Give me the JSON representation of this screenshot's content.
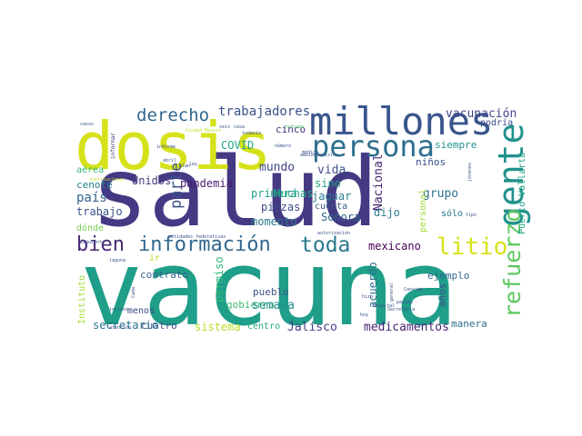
{
  "words": [
    {
      "text": "salud",
      "color": "#443983",
      "vertical": false
    },
    {
      "text": "vacuna",
      "color": "#1f9e89",
      "vertical": false
    },
    {
      "text": "dosis",
      "color": "#d5e21a",
      "vertical": false
    },
    {
      "text": "millones",
      "color": "#39568c",
      "vertical": false
    },
    {
      "text": "persona",
      "color": "#2d708e",
      "vertical": false
    },
    {
      "text": "información",
      "color": "#31688e",
      "vertical": false
    },
    {
      "text": "toda",
      "color": "#2a788e",
      "vertical": false
    },
    {
      "text": "bien",
      "color": "#482878",
      "vertical": false
    },
    {
      "text": "litio",
      "color": "#d8e219",
      "vertical": false
    },
    {
      "text": "gente",
      "color": "#21918c",
      "vertical": true
    },
    {
      "text": "refuerzo",
      "color": "#5ec962",
      "vertical": true
    },
    {
      "text": "derecho",
      "color": "#31688e",
      "vertical": false
    },
    {
      "text": "trabajadores",
      "color": "#3b528b",
      "vertical": false
    },
    {
      "text": "vacunación",
      "color": "#404688",
      "vertical": false
    },
    {
      "text": "Puerto Vallarta",
      "color": "#20a386",
      "vertical": true
    },
    {
      "text": "podría",
      "color": "#3e4a89",
      "vertical": false
    },
    {
      "text": "COVID",
      "color": "#20a386",
      "vertical": false
    },
    {
      "text": "cinco",
      "color": "#46337e",
      "vertical": false
    },
    {
      "text": "siempre",
      "color": "#21918c",
      "vertical": false
    },
    {
      "text": "niños",
      "color": "#3b528b",
      "vertical": false
    },
    {
      "text": "mundo",
      "color": "#404688",
      "vertical": false
    },
    {
      "text": "vida",
      "color": "#3b528b",
      "vertical": false
    },
    {
      "text": "Unidos",
      "color": "#443983",
      "vertical": false
    },
    {
      "text": "pandemia",
      "color": "#481a6c",
      "vertical": false
    },
    {
      "text": "parte",
      "color": "#3b528b",
      "vertical": true
    },
    {
      "text": "Muchas",
      "color": "#22a884",
      "vertical": false
    },
    {
      "text": "sino",
      "color": "#1fa188",
      "vertical": false
    },
    {
      "text": "Nacional",
      "color": "#482475",
      "vertical": true
    },
    {
      "text": "grupo",
      "color": "#2c728e",
      "vertical": false
    },
    {
      "text": "aérea",
      "color": "#35b779",
      "vertical": false
    },
    {
      "text": "cenote",
      "color": "#25848e",
      "vertical": false
    },
    {
      "text": "país",
      "color": "#33638d",
      "vertical": false
    },
    {
      "text": "trabajo",
      "color": "#3b528b",
      "vertical": false
    },
    {
      "text": "dónde",
      "color": "#7ad151",
      "vertical": false
    },
    {
      "text": "primera",
      "color": "#1f9e89",
      "vertical": false
    },
    {
      "text": "jaguar",
      "color": "#287c8e",
      "vertical": false
    },
    {
      "text": "piezas",
      "color": "#3e4a89",
      "vertical": false
    },
    {
      "text": "cuenta",
      "color": "#38598c",
      "vertical": false
    },
    {
      "text": "dijo",
      "color": "#27808e",
      "vertical": false
    },
    {
      "text": "Sonora",
      "color": "#31688e",
      "vertical": false
    },
    {
      "text": "momento",
      "color": "#2a788e",
      "vertical": false
    },
    {
      "text": "personal",
      "color": "#a2da37",
      "vertical": true
    },
    {
      "text": "sólo",
      "color": "#2a788e",
      "vertical": false
    },
    {
      "text": "mexicano",
      "color": "#440154",
      "vertical": false
    },
    {
      "text": "ir",
      "color": "#bddf26",
      "vertical": false
    },
    {
      "text": "contrato",
      "color": "#33638d",
      "vertical": false
    },
    {
      "text": "gobierno",
      "color": "#3fbc73",
      "vertical": false
    },
    {
      "text": "permiso",
      "color": "#35b779",
      "vertical": true
    },
    {
      "text": "acuerdo",
      "color": "#2c728e",
      "vertical": true
    },
    {
      "text": "ejemplo",
      "color": "#31688e",
      "vertical": false
    },
    {
      "text": "pueblo",
      "color": "#3b528b",
      "vertical": false
    },
    {
      "text": "semana",
      "color": "#21918c",
      "vertical": false
    },
    {
      "text": "años",
      "color": "#3e4a89",
      "vertical": true
    },
    {
      "text": "Instituto",
      "color": "#a5db36",
      "vertical": true
    },
    {
      "text": "menos",
      "color": "#3f4889",
      "vertical": false
    },
    {
      "text": "cuatro",
      "color": "#3b528b",
      "vertical": false
    },
    {
      "text": "manera",
      "color": "#2e6e8e",
      "vertical": false
    },
    {
      "text": "secretario",
      "color": "#2c728e",
      "vertical": false
    },
    {
      "text": "sistema",
      "color": "#b5de2b",
      "vertical": false
    },
    {
      "text": "centro",
      "color": "#25ac82",
      "vertical": false
    },
    {
      "text": "Jalisco",
      "color": "#414487",
      "vertical": false
    },
    {
      "text": "medicamentos",
      "color": "#482475",
      "vertical": false
    },
    {
      "text": "informar",
      "color": "#472d7b",
      "vertical": true
    },
    {
      "text": "informe",
      "color": "#3b528b",
      "vertical": false
    },
    {
      "text": "plan",
      "color": "#3e4a89",
      "vertical": false
    },
    {
      "text": "siguiente",
      "color": "#3b528b",
      "vertical": false
    },
    {
      "text": "casos",
      "color": "#3b528b",
      "vertical": false
    },
    {
      "text": "entidades federativas",
      "color": "#3b528b",
      "vertical": false
    },
    {
      "text": "reforma",
      "color": "#48c16e",
      "vertical": false
    },
    {
      "text": "número",
      "color": "#3b528b",
      "vertical": false
    },
    {
      "text": "ambientalistas",
      "color": "#3b528b",
      "vertical": false
    },
    {
      "text": "todavía",
      "color": "#3b528b",
      "vertical": false
    },
    {
      "text": "Hospital",
      "color": "#3b528b",
      "vertical": false
    },
    {
      "text": "Secretaría",
      "color": "#3b528b",
      "vertical": false
    },
    {
      "text": "hizo",
      "color": "#3b528b",
      "vertical": false
    },
    {
      "text": "países",
      "color": "#3b528b",
      "vertical": false
    },
    {
      "text": "hoy",
      "color": "#3b528b",
      "vertical": false
    },
    {
      "text": "atención",
      "color": "#3b528b",
      "vertical": false
    },
    {
      "text": "incluso",
      "color": "#3b528b",
      "vertical": false
    },
    {
      "text": "Cada",
      "color": "#3b528b",
      "vertical": true
    },
    {
      "text": "abril",
      "color": "#3b528b",
      "vertical": false
    },
    {
      "text": "ley",
      "color": "#3b528b",
      "vertical": false
    },
    {
      "text": "general",
      "color": "#3b528b",
      "vertical": true
    },
    {
      "text": "Canaima",
      "color": "#3b528b",
      "vertical": false
    },
    {
      "text": "tipo",
      "color": "#3b528b",
      "vertical": false
    },
    {
      "text": "jóvenes",
      "color": "#3b528b",
      "vertical": true
    },
    {
      "text": "autorización",
      "color": "#3b528b",
      "vertical": false
    },
    {
      "text": "médico",
      "color": "#3b528b",
      "vertical": false
    },
    {
      "text": "laguna",
      "color": "#3b528b",
      "vertical": false
    },
    {
      "text": "seis",
      "color": "#3b528b",
      "vertical": false
    },
    {
      "text": "Ciudad México",
      "color": "#bddf26",
      "vertical": false
    },
    {
      "text": "instituciones",
      "color": "#bddf26",
      "vertical": false
    },
    {
      "text": "casa",
      "color": "#3b528b",
      "vertical": false
    }
  ]
}
